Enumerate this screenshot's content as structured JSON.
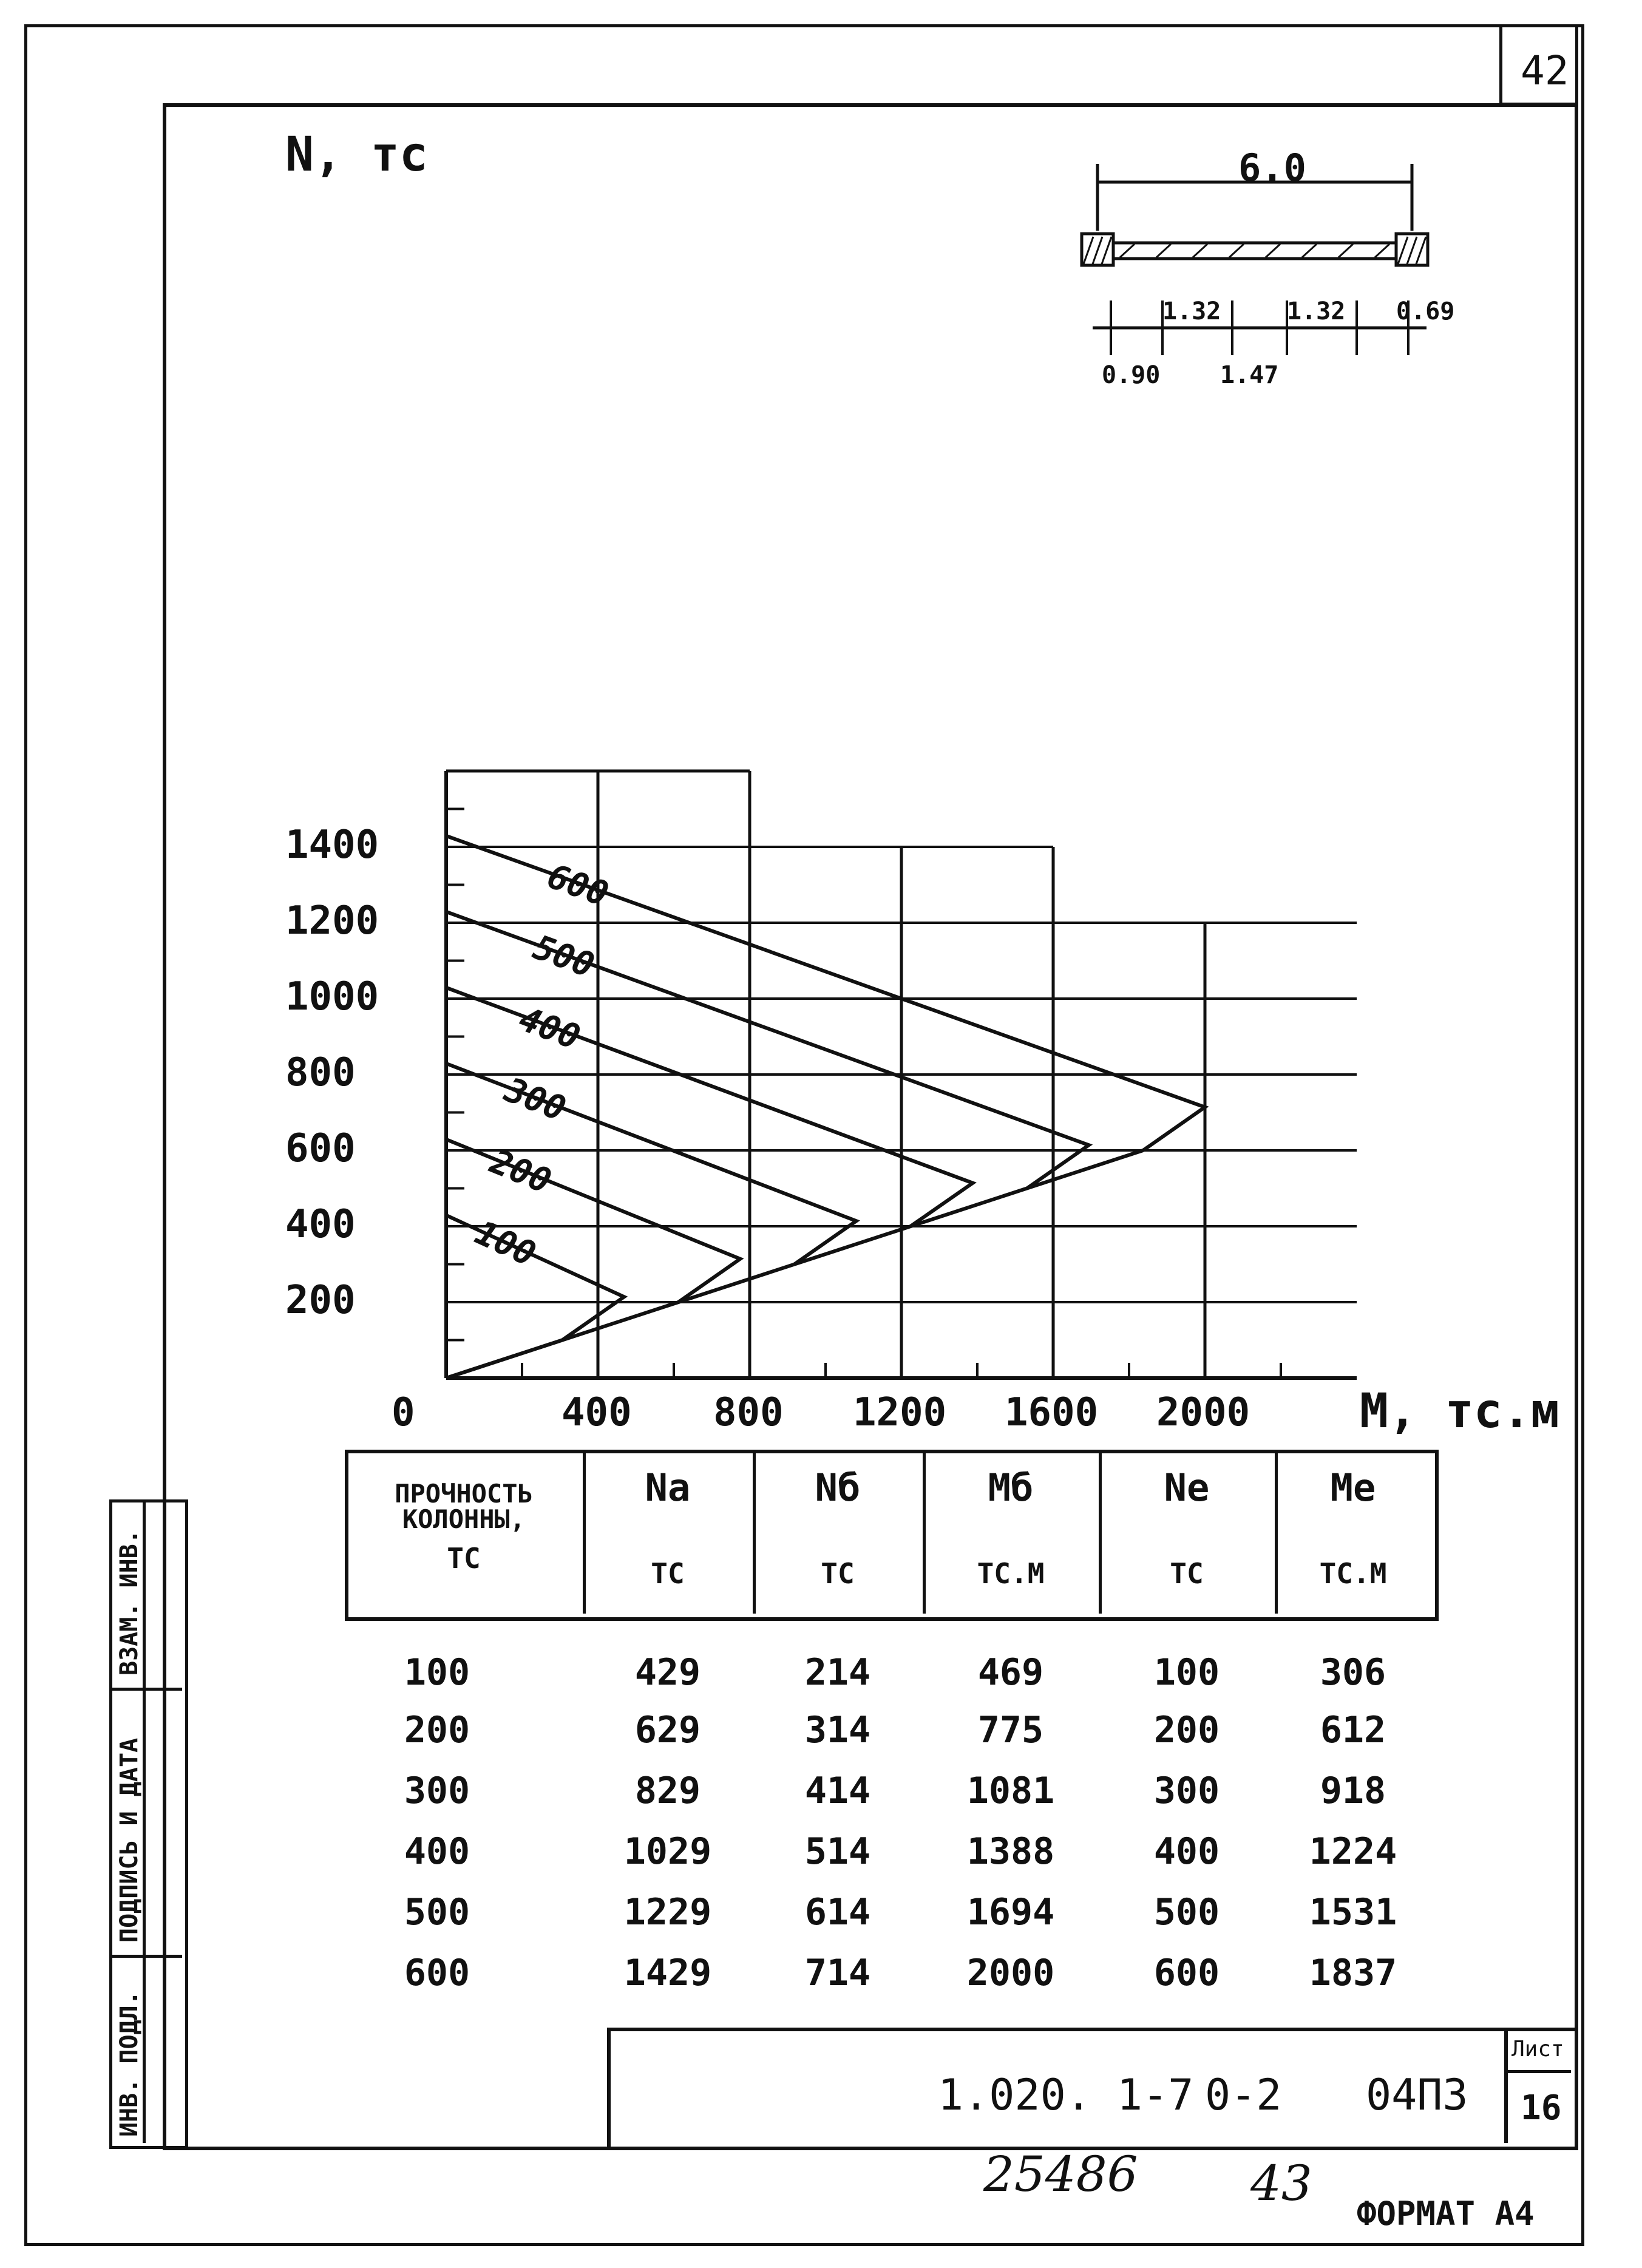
{
  "sheet": {
    "corner_page": "42",
    "code": "1.020. 1-7",
    "part": "0-2",
    "doc": "04П3",
    "sheet_label": "Лист",
    "sheet_no": "16",
    "handwritten_no": "25486",
    "handwritten_page": "43",
    "format": "ФОРМАТ А4"
  },
  "side_stamp": {
    "inv_podl": "ИНВ. ПОДЛ.",
    "podpis_data": "ПОДПИСЬ И ДАТА",
    "vzam_inv": "ВЗАМ. ИНВ."
  },
  "section_sketch": {
    "total": "6.0",
    "d1": "1.32",
    "d2": "1.32",
    "d3": "0.69",
    "d4": "0.90",
    "d5": "1.47"
  },
  "chart_data": {
    "type": "line",
    "xlabel": "M, тс.м",
    "ylabel": "N, тс",
    "xlim": [
      0,
      2400
    ],
    "ylim": [
      0,
      1600
    ],
    "x_ticks": [
      "0",
      "400",
      "800",
      "1200",
      "1600",
      "2000"
    ],
    "y_ticks": [
      "200",
      "400",
      "600",
      "800",
      "1000",
      "1200",
      "1400"
    ],
    "series": [
      {
        "name": "100",
        "points": [
          [
            0,
            429
          ],
          [
            469,
            214
          ],
          [
            306,
            100
          ],
          [
            0,
            0
          ]
        ]
      },
      {
        "name": "200",
        "points": [
          [
            0,
            629
          ],
          [
            775,
            314
          ],
          [
            612,
            200
          ]
        ]
      },
      {
        "name": "300",
        "points": [
          [
            0,
            829
          ],
          [
            1081,
            414
          ],
          [
            918,
            300
          ]
        ]
      },
      {
        "name": "400",
        "points": [
          [
            0,
            1029
          ],
          [
            1388,
            514
          ],
          [
            1224,
            400
          ]
        ]
      },
      {
        "name": "500",
        "points": [
          [
            0,
            1229
          ],
          [
            1694,
            614
          ],
          [
            1531,
            500
          ]
        ]
      },
      {
        "name": "600",
        "points": [
          [
            0,
            1429
          ],
          [
            2000,
            714
          ],
          [
            1837,
            600
          ]
        ]
      }
    ],
    "envelope": {
      "points": [
        [
          0,
          0
        ],
        [
          1837,
          600
        ]
      ]
    }
  },
  "table": {
    "headers": [
      {
        "main": "ПРОЧНОСТЬ КОЛОННЫ,",
        "unit": "ТС"
      },
      {
        "main": "Na",
        "unit": "ТС"
      },
      {
        "main": "Nб",
        "unit": "ТС"
      },
      {
        "main": "Mб",
        "unit": "ТС.М"
      },
      {
        "main": "Ne",
        "unit": "ТС"
      },
      {
        "main": "Me",
        "unit": "ТС.М"
      }
    ],
    "rows": [
      [
        "100",
        "429",
        "214",
        "469",
        "100",
        "306"
      ],
      [
        "200",
        "629",
        "314",
        "775",
        "200",
        "612"
      ],
      [
        "300",
        "829",
        "414",
        "1081",
        "300",
        "918"
      ],
      [
        "400",
        "1029",
        "514",
        "1388",
        "400",
        "1224"
      ],
      [
        "500",
        "1229",
        "614",
        "1694",
        "500",
        "1531"
      ],
      [
        "600",
        "1429",
        "714",
        "2000",
        "600",
        "1837"
      ]
    ]
  }
}
